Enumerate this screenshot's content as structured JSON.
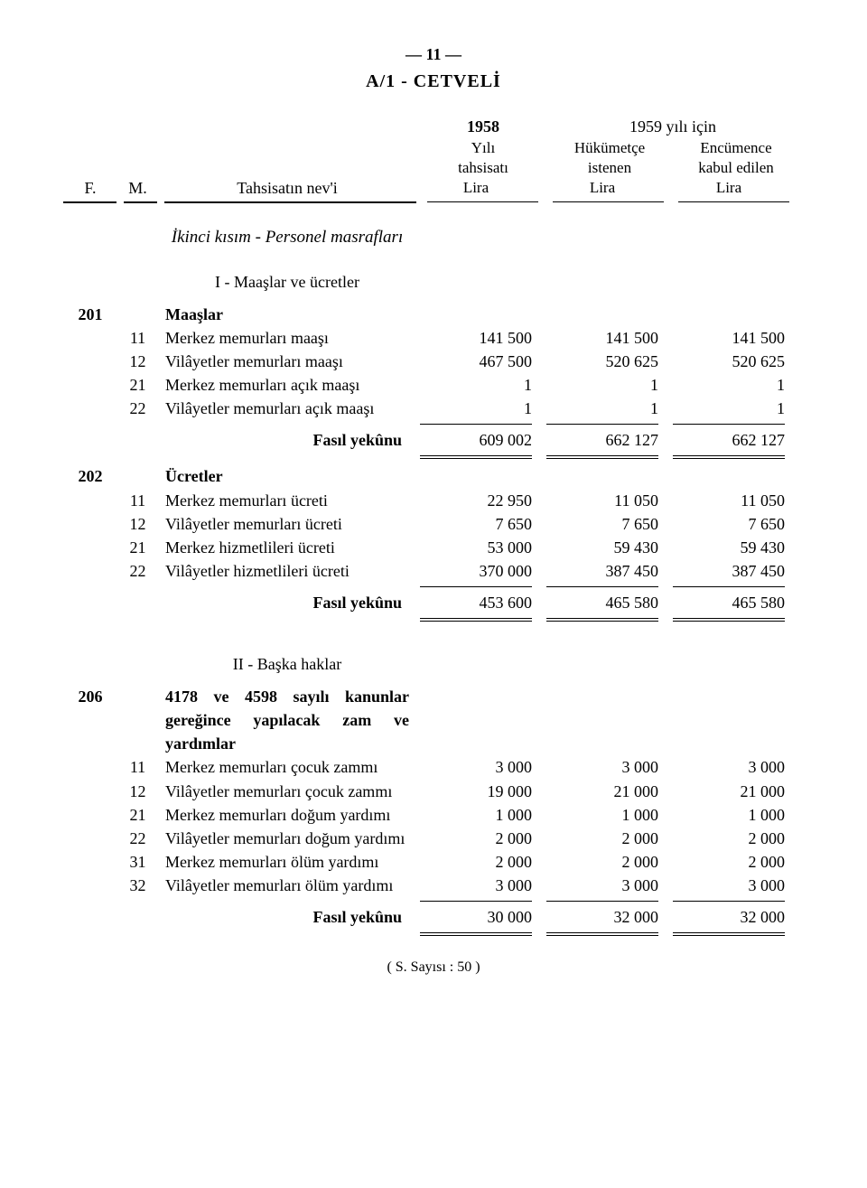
{
  "page_number_label": "— 11 —",
  "doc_title": "A/1 - CETVELİ",
  "headers": {
    "f": "F.",
    "m": "M.",
    "desc": "Tahsisatın nev'i",
    "y1958": "1958",
    "y1958_sub1": "Yılı",
    "y1958_sub2": "tahsisatı",
    "y1958_sub3": "Lira",
    "y1959": "1959 yılı için",
    "col2_sub1": "Hükümetçe",
    "col2_sub2": "istenen",
    "col2_sub3": "Lira",
    "col3_sub1": "Encümence",
    "col3_sub2": "kabul edilen",
    "col3_sub3": "Lira"
  },
  "section_part": "İkinci kısım - Personel masrafları",
  "subsection_I": "I - Maaşlar ve ücretler",
  "subsection_II": "II - Başka haklar",
  "fasil_yekunu": "Fasıl yekûnu",
  "s201": {
    "f": "201",
    "title": "Maaşlar",
    "rows": [
      {
        "m": "11",
        "desc": "Merkez memurları maaşı",
        "v1": "141 500",
        "v2": "141 500",
        "v3": "141 500"
      },
      {
        "m": "12",
        "desc": "Vilâyetler memurları maaşı",
        "v1": "467 500",
        "v2": "520 625",
        "v3": "520 625"
      },
      {
        "m": "21",
        "desc": "Merkez memurları açık maaşı",
        "v1": "1",
        "v2": "1",
        "v3": "1"
      },
      {
        "m": "22",
        "desc": "Vilâyetler memurları açık maaşı",
        "v1": "1",
        "v2": "1",
        "v3": "1"
      }
    ],
    "total": {
      "v1": "609 002",
      "v2": "662 127",
      "v3": "662 127"
    }
  },
  "s202": {
    "f": "202",
    "title": "Ücretler",
    "rows": [
      {
        "m": "11",
        "desc": "Merkez memurları ücreti",
        "v1": "22 950",
        "v2": "11 050",
        "v3": "11 050"
      },
      {
        "m": "12",
        "desc": "Vilâyetler memurları ücreti",
        "v1": "7 650",
        "v2": "7 650",
        "v3": "7 650"
      },
      {
        "m": "21",
        "desc": "Merkez hizmetlileri ücreti",
        "v1": "53 000",
        "v2": "59 430",
        "v3": "59 430"
      },
      {
        "m": "22",
        "desc": "Vilâyetler hizmetlileri ücreti",
        "v1": "370 000",
        "v2": "387 450",
        "v3": "387 450"
      }
    ],
    "total": {
      "v1": "453 600",
      "v2": "465 580",
      "v3": "465 580"
    }
  },
  "s206": {
    "f": "206",
    "title": "4178 ve 4598 sayılı kanunlar gereğince yapılacak zam ve yardımlar",
    "rows": [
      {
        "m": "11",
        "desc": "Merkez memurları çocuk zammı",
        "v1": "3 000",
        "v2": "3 000",
        "v3": "3 000"
      },
      {
        "m": "12",
        "desc": "Vilâyetler memurları çocuk zammı",
        "v1": "19 000",
        "v2": "21 000",
        "v3": "21 000"
      },
      {
        "m": "21",
        "desc": "Merkez memurları doğum yardımı",
        "v1": "1 000",
        "v2": "1 000",
        "v3": "1 000"
      },
      {
        "m": "22",
        "desc": "Vilâyetler memurları doğum yardımı",
        "v1": "2 000",
        "v2": "2 000",
        "v3": "2 000"
      },
      {
        "m": "31",
        "desc": "Merkez memurları ölüm yardımı",
        "v1": "2 000",
        "v2": "2 000",
        "v3": "2 000"
      },
      {
        "m": "32",
        "desc": "Vilâyetler memurları ölüm yardımı",
        "v1": "3 000",
        "v2": "3 000",
        "v3": "3 000"
      }
    ],
    "total": {
      "v1": "30 000",
      "v2": "32 000",
      "v3": "32 000"
    }
  },
  "footer": "( S. Sayısı : 50 )"
}
